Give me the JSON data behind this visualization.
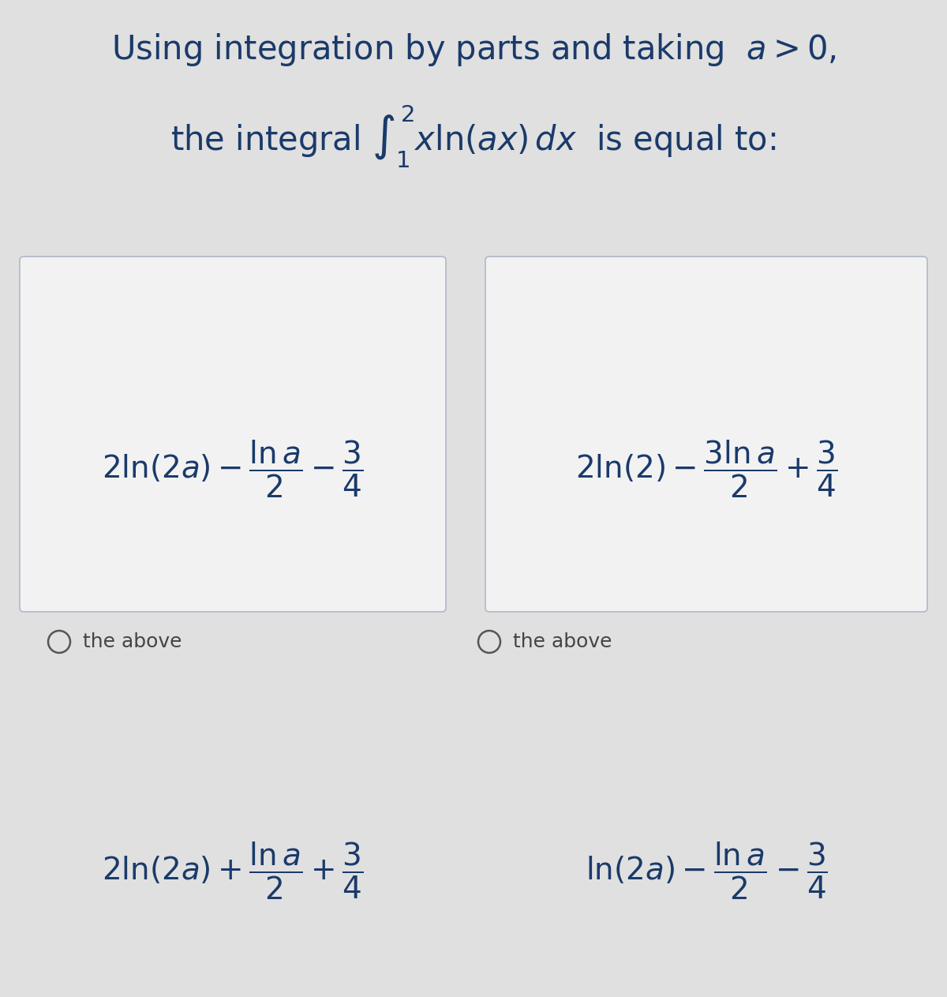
{
  "bg_color": "#e0e0e0",
  "card_color": "#f2f2f2",
  "text_color": "#1a3a6a",
  "radio_color": "#555555",
  "label_color": "#444444",
  "title_line1": "Using integration by parts and taking  $a > 0$,",
  "title_line2": "the integral $\\int_{1}^{2} x\\ln(ax)\\,dx$  is equal to:",
  "option_A": "$2\\ln(2a) - \\dfrac{\\ln a}{2} - \\dfrac{3}{4}$",
  "option_B": "$2\\ln(2) - \\dfrac{3\\ln a}{2} + \\dfrac{3}{4}$",
  "option_C": "$2\\ln(2a) + \\dfrac{\\ln a}{2} + \\dfrac{3}{4}$",
  "option_D": "$\\ln(2a) - \\dfrac{\\ln a}{2} - \\dfrac{3}{4}$",
  "radio_label": "the above",
  "title_fontsize": 30,
  "option_fontsize": 28,
  "radio_fontsize": 18,
  "figsize": [
    12.0,
    12.63
  ],
  "dpi": 100
}
